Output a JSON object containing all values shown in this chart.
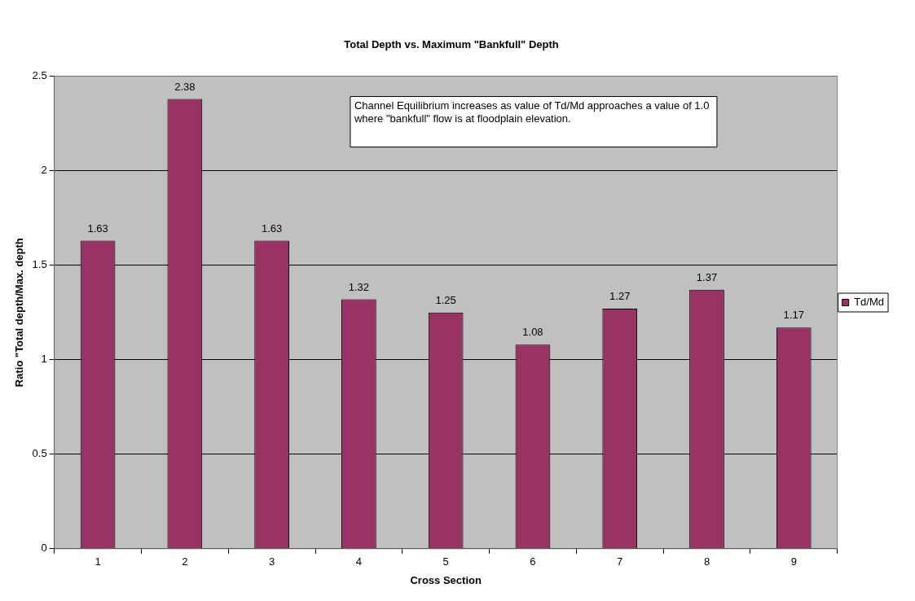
{
  "chart_data": {
    "type": "bar",
    "title": "Total Depth vs. Maximum \"Bankfull\" Depth",
    "xlabel": "Cross Section",
    "ylabel": "Ratio \"Total depth/Max. depth",
    "categories": [
      "1",
      "2",
      "3",
      "4",
      "5",
      "6",
      "7",
      "8",
      "9"
    ],
    "series": [
      {
        "name": "Td/Md",
        "color": "#993366",
        "values": [
          1.63,
          2.38,
          1.63,
          1.32,
          1.25,
          1.08,
          1.27,
          1.37,
          1.17
        ]
      }
    ],
    "ylim": [
      0,
      2.5
    ],
    "yticks": [
      0,
      0.5,
      1,
      1.5,
      2,
      2.5
    ],
    "grid": "y",
    "legend": "right",
    "data_labels": true,
    "annotations": [
      "Channel Equilibrium increases as value of Td/Md approaches a value of 1.0 where \"bankfull\" flow is at floodplain elevation."
    ]
  }
}
